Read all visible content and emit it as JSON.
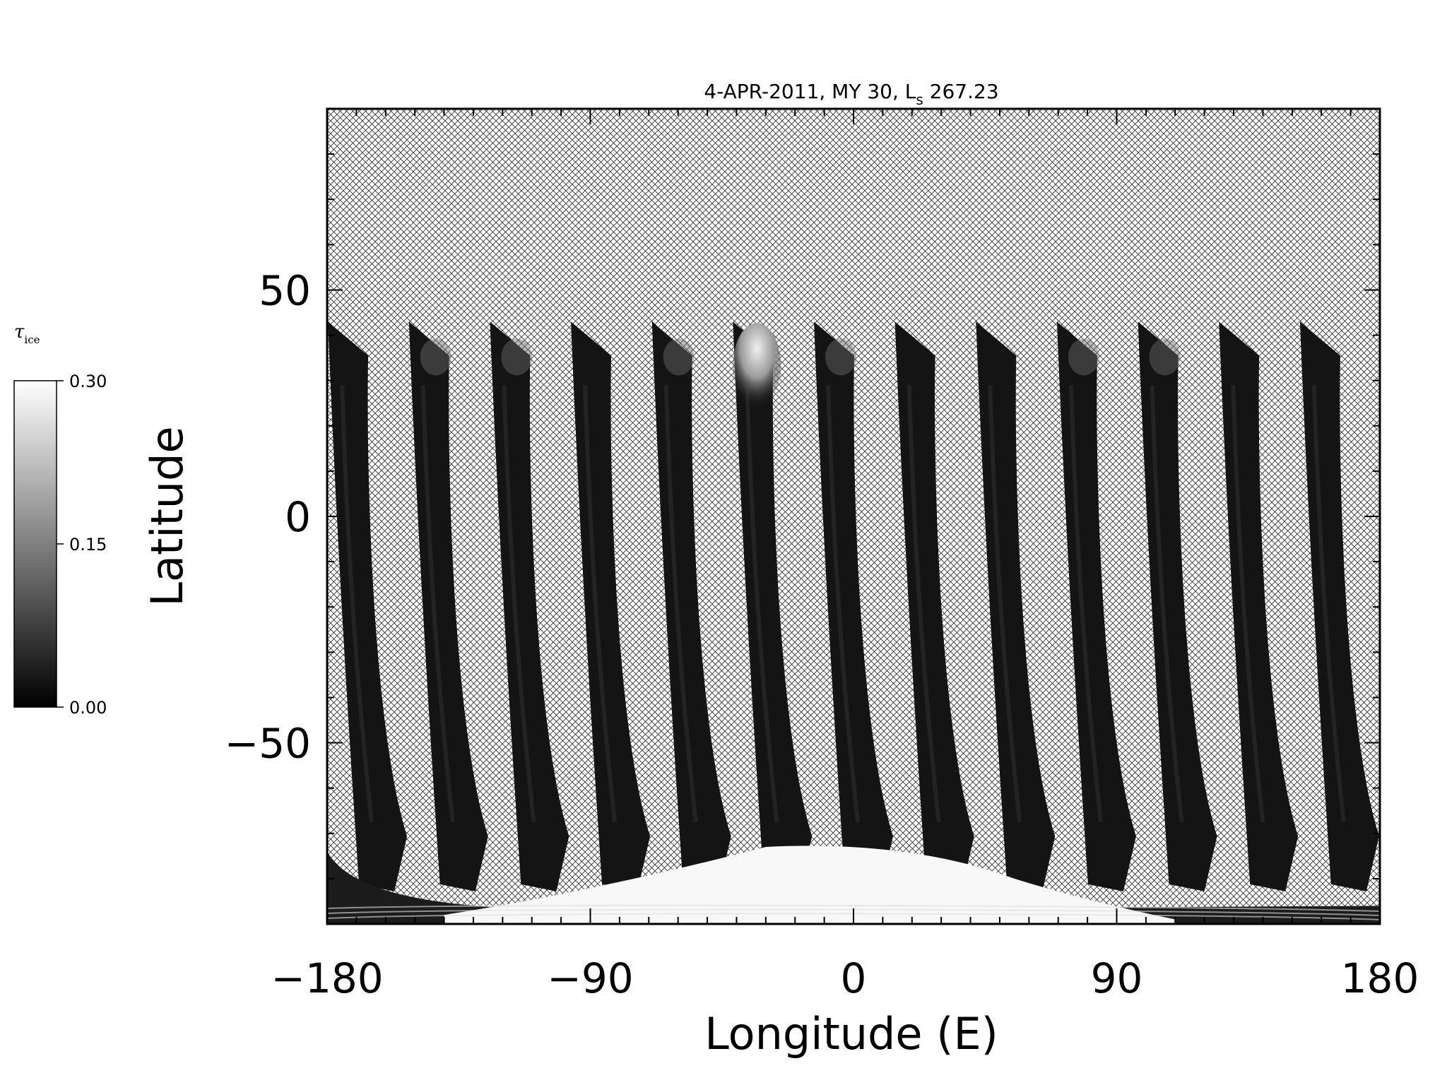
{
  "chart_data": {
    "type": "heatmap",
    "title": "4-APR-2011, MY 30,  L",
    "title_subscript": "s",
    "title_suffix": " 267.23",
    "xlabel": "Longitude (E)",
    "ylabel": "Latitude",
    "xlim": [
      -180,
      180
    ],
    "ylim": [
      -90,
      90
    ],
    "xticks": [
      -180,
      -90,
      0,
      90,
      180
    ],
    "xtick_labels": [
      "−180",
      "−90",
      "0",
      "90",
      "180"
    ],
    "yticks": [
      -50,
      0,
      50
    ],
    "ytick_labels": [
      "−50",
      "0",
      "50"
    ],
    "colorbar": {
      "label": "τ",
      "label_subscript": "ice",
      "range": [
        0.0,
        0.3
      ],
      "tick_labels": [
        "0.00",
        "0.15",
        "0.30"
      ],
      "colormap": "grayscale"
    },
    "no_data_pattern": "crosshatch",
    "swaths": {
      "count": 13,
      "lat_top": 43,
      "lat_bottom": -80,
      "start_lon": -172,
      "spacing_deg": 27.7,
      "bright_swath_index": 5,
      "bright_swath_value": 0.28,
      "typical_value": 0.03
    },
    "polar_cap": {
      "lat_edge_center": -73,
      "lon_center": 0,
      "value": 0.3
    },
    "colors": {
      "swath": "#141414",
      "cap": "#f8f8f8",
      "hatch": "#333333"
    }
  }
}
